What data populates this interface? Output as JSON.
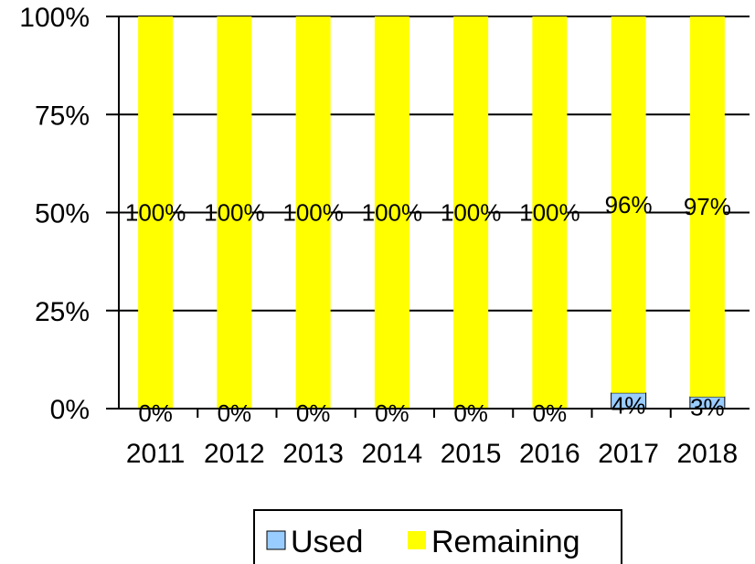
{
  "chart_data": {
    "type": "bar",
    "stacked": true,
    "percent": true,
    "categories": [
      "2011",
      "2012",
      "2013",
      "2014",
      "2015",
      "2016",
      "2017",
      "2018"
    ],
    "series": [
      {
        "name": "Used",
        "values": [
          0,
          0,
          0,
          0,
          0,
          0,
          4,
          3
        ],
        "labels": [
          "0%",
          "0%",
          "0%",
          "0%",
          "0%",
          "0%",
          "4%",
          "3%"
        ],
        "color": "#99ccff"
      },
      {
        "name": "Remaining",
        "values": [
          100,
          100,
          100,
          100,
          100,
          100,
          96,
          97
        ],
        "labels": [
          "100%",
          "100%",
          "100%",
          "100%",
          "100%",
          "100%",
          "96%",
          "97%"
        ],
        "color": "#ffff00"
      }
    ],
    "ylim": [
      0,
      100
    ],
    "yticks": [
      0,
      25,
      50,
      75,
      100
    ],
    "ytick_labels": [
      "0%",
      "25%",
      "50%",
      "75%",
      "100%"
    ],
    "grid": true,
    "legend": "bottom",
    "title": "",
    "xlabel": "",
    "ylabel": ""
  }
}
